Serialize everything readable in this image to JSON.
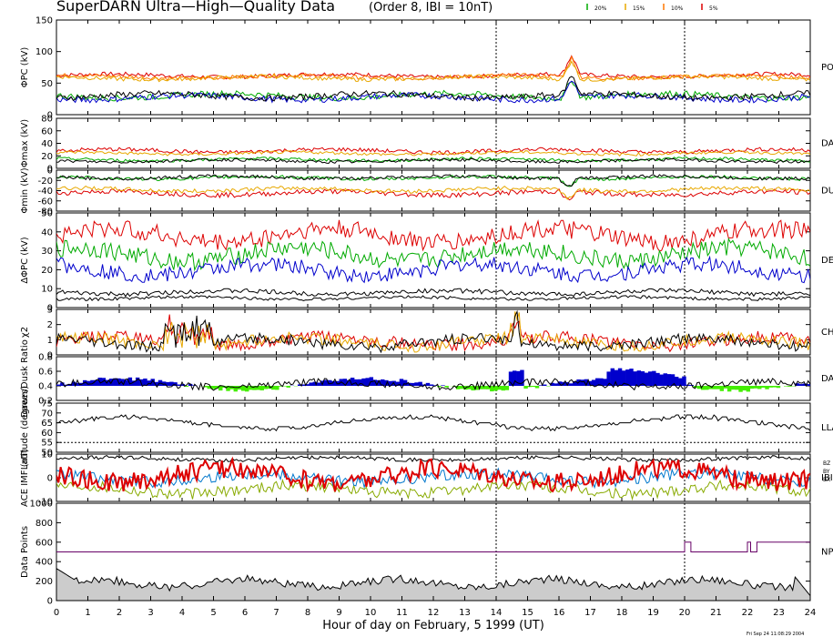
{
  "header": {
    "title": "SuperDARN Ultra—High—Quality Data",
    "subtitle": "(Order 8, IBI = 10nT)"
  },
  "legend": [
    {
      "label": "20%",
      "color": "#00aa00"
    },
    {
      "label": "15%",
      "color": "#e8a800"
    },
    {
      "label": "10%",
      "color": "#ff7700"
    },
    {
      "label": "5%",
      "color": "#dd0000"
    }
  ],
  "footer": {
    "xlabel": "Hour of day on February, 5 1999 (UT)",
    "stamp": "Fri Sep 24 11:08:29 2004"
  },
  "chart_data": {
    "type": "line",
    "x_range": [
      0,
      24
    ],
    "x_ticks": [
      "0",
      "1",
      "2",
      "3",
      "4",
      "5",
      "6",
      "7",
      "8",
      "9",
      "10",
      "11",
      "12",
      "13",
      "14",
      "15",
      "16",
      "17",
      "18",
      "19",
      "20",
      "21",
      "22",
      "23",
      "24"
    ],
    "vlines": [
      14,
      20
    ],
    "panels": [
      {
        "id": "phi-pc",
        "ylabel": "ΦPC (kV)",
        "ylim": [
          0,
          150
        ],
        "yticks": [
          "0",
          "50",
          "100",
          "150"
        ],
        "right_label": "PO",
        "series": [
          {
            "color": "#dd0000",
            "base": 62,
            "amp": 4
          },
          {
            "color": "#ff7700",
            "base": 60,
            "amp": 4
          },
          {
            "color": "#e8a800",
            "base": 58,
            "amp": 4
          },
          {
            "color": "#00aa00",
            "base": 30,
            "amp": 6
          },
          {
            "color": "#0000cc",
            "base": 27,
            "amp": 6
          },
          {
            "color": "#000000",
            "base": 30,
            "amp": 6
          }
        ]
      },
      {
        "id": "phi-max",
        "ylabel": "Φmax (kV)",
        "ylim": [
          0,
          80
        ],
        "yticks": [
          "0",
          "20",
          "40",
          "60",
          "80"
        ],
        "right_label": "DAY",
        "series": [
          {
            "color": "#dd0000",
            "base": 28,
            "amp": 4
          },
          {
            "color": "#e8a800",
            "base": 24,
            "amp": 3
          },
          {
            "color": "#00aa00",
            "base": 14,
            "amp": 3
          },
          {
            "color": "#000000",
            "base": 12,
            "amp": 3
          }
        ]
      },
      {
        "id": "phi-min",
        "ylabel": "Φmin (kV)",
        "ylim": [
          -80,
          0
        ],
        "yticks": [
          "-80",
          "-60",
          "-40",
          "-20",
          "0"
        ],
        "right_label": "DU",
        "series": [
          {
            "color": "#dd0000",
            "base": -45,
            "amp": 6
          },
          {
            "color": "#e8a800",
            "base": -38,
            "amp": 5
          },
          {
            "color": "#00aa00",
            "base": -15,
            "amp": 4
          },
          {
            "color": "#000000",
            "base": -14,
            "amp": 4
          }
        ]
      },
      {
        "id": "delta-phi",
        "ylabel": "ΔΦPC (kV)",
        "ylim": [
          0,
          50
        ],
        "yticks": [
          "0",
          "10",
          "20",
          "30",
          "40",
          "50"
        ],
        "right_label": "DE",
        "series": [
          {
            "color": "#dd0000",
            "base": 38,
            "amp": 6
          },
          {
            "color": "#00aa00",
            "base": 28,
            "amp": 6
          },
          {
            "color": "#0000cc",
            "base": 20,
            "amp": 5
          },
          {
            "color": "#000000",
            "base": 8,
            "amp": 1.5
          },
          {
            "color": "#000000",
            "base": 5,
            "amp": 1
          }
        ]
      },
      {
        "id": "chi2",
        "ylabel": "χ2",
        "ylim": [
          0,
          3
        ],
        "yticks": [
          "0",
          "1",
          "2",
          "3"
        ],
        "right_label": "CH",
        "series": [
          {
            "color": "#dd0000",
            "base": 0.9,
            "amp": 0.5
          },
          {
            "color": "#e8a800",
            "base": 0.85,
            "amp": 0.5
          },
          {
            "color": "#000000",
            "base": 0.8,
            "amp": 0.45
          }
        ]
      },
      {
        "id": "ratio",
        "ylabel": "Dawn/Dusk Ratio",
        "ylim": [
          0.2,
          0.8
        ],
        "yticks": [
          "0.2",
          "0.4",
          "0.6",
          "0.8"
        ],
        "right_label": "DAY",
        "series": [
          {
            "color": "#000000",
            "base": 0.42,
            "amp": 0.06
          }
        ]
      },
      {
        "id": "latitude",
        "ylabel": "Latitude (degrees)",
        "ylim": [
          50,
          75
        ],
        "yticks": [
          "50",
          "55",
          "60",
          "65",
          "70",
          "75"
        ],
        "right_label": "LLA",
        "hline": 55,
        "series": [
          {
            "color": "#000000",
            "base": 65,
            "amp": 3
          }
        ]
      },
      {
        "id": "imf",
        "ylabel": "ACE IMF (nT)",
        "ylim": [
          -10,
          10
        ],
        "yticks": [
          "-10",
          "0",
          "10"
        ],
        "right_label": "IBI",
        "right_labels": [
          "BZ",
          "BY",
          "BX"
        ],
        "series": [
          {
            "color": "#000000",
            "base": 8,
            "amp": 1
          },
          {
            "color": "#88aa00",
            "base": -5,
            "amp": 3
          },
          {
            "color": "#0077cc",
            "base": 0,
            "amp": 3
          },
          {
            "color": "#dd0000",
            "base": 1,
            "amp": 5
          }
        ]
      },
      {
        "id": "points",
        "ylabel": "Data Points",
        "ylim": [
          0,
          1000
        ],
        "yticks": [
          "0",
          "200",
          "400",
          "600",
          "800",
          "1000"
        ],
        "right_label": "NP",
        "npoints": {
          "color": "#660066",
          "segments": [
            [
              0,
              20,
              500
            ],
            [
              20,
              20.2,
              600
            ],
            [
              20.2,
              22,
              500
            ],
            [
              22,
              22.1,
              600
            ],
            [
              22.1,
              22.3,
              500
            ],
            [
              22.3,
              24,
              600
            ]
          ]
        },
        "area_base": 180
      }
    ]
  }
}
